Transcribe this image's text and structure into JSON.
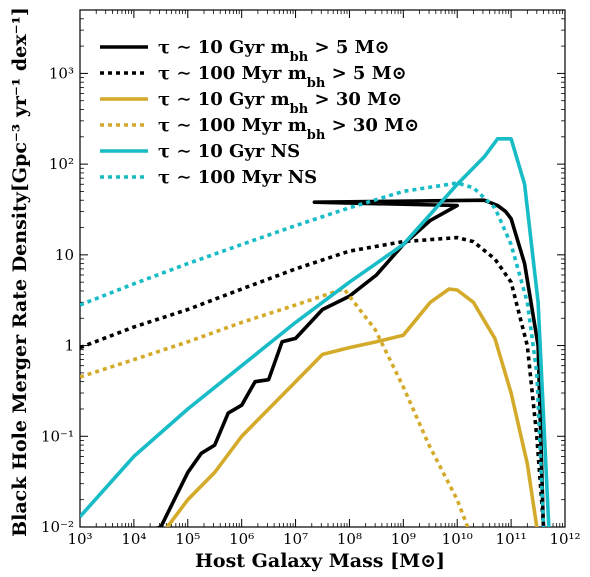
{
  "chart_data": {
    "type": "line",
    "xlabel": "Host Galaxy Mass [M⊙]",
    "ylabel": "Black Hole Merger Rate Density[Gpc⁻³ yr⁻¹ dex⁻¹]",
    "xscale": "log",
    "yscale": "log",
    "xlim": [
      1000,
      1000000000000
    ],
    "ylim": [
      0.01,
      5000
    ],
    "legend_position": "top-left",
    "x_ticks": [
      {
        "value": 1000,
        "label": "10³"
      },
      {
        "value": 10000,
        "label": "10⁴"
      },
      {
        "value": 100000,
        "label": "10⁵"
      },
      {
        "value": 1000000,
        "label": "10⁶"
      },
      {
        "value": 10000000,
        "label": "10⁷"
      },
      {
        "value": 100000000,
        "label": "10⁸"
      },
      {
        "value": 1000000000,
        "label": "10⁹"
      },
      {
        "value": 10000000000,
        "label": "10¹⁰"
      },
      {
        "value": 100000000000,
        "label": "10¹¹"
      },
      {
        "value": 1000000000000,
        "label": "10¹²"
      }
    ],
    "y_ticks": [
      {
        "value": 0.01,
        "label": "10⁻²"
      },
      {
        "value": 0.1,
        "label": "10⁻¹"
      },
      {
        "value": 1,
        "label": "1"
      },
      {
        "value": 10,
        "label": "10"
      },
      {
        "value": 100,
        "label": "10²"
      },
      {
        "value": 1000,
        "label": "10³"
      }
    ],
    "series": [
      {
        "name": "τ ∼ 10 Gyr m_bh > 5 M⊙",
        "color": "#000000",
        "style": "solid",
        "x": [
          10000,
          31623,
          100000,
          177828,
          316228,
          562341,
          1000000,
          1778279,
          3162278,
          5623413,
          10000000,
          31622777,
          100000000,
          316227766,
          1000000000,
          3162277660,
          10000000000,
          22387211,
          31622776602,
          56234132519,
          79432823472,
          100000000000,
          177827941004,
          316227766017,
          398107170553
        ],
        "y": [
          0.008,
          0.01,
          0.04,
          0.065,
          0.08,
          0.18,
          0.22,
          0.4,
          0.42,
          1.1,
          1.2,
          2.5,
          3.5,
          6,
          13,
          24,
          35,
          38,
          40,
          35,
          30,
          25,
          8,
          1,
          0.01
        ],
        "x_note": ""
      },
      {
        "name": "τ ∼ 100 Myr m_bh > 5 M⊙",
        "color": "#000000",
        "style": "dotted",
        "x": [
          1000,
          10000,
          100000,
          1000000,
          10000000,
          100000000,
          1000000000,
          10000000000,
          20000000000,
          50000000000,
          100000000000,
          200000000000,
          300000000000,
          400000000000
        ],
        "y": [
          0.95,
          1.6,
          2.5,
          4.2,
          7,
          11,
          14,
          15.5,
          14,
          9,
          5,
          1,
          0.1,
          0.01
        ]
      },
      {
        "name": "τ ∼ 10 Gyr m_bh > 30 M⊙",
        "color": "#d4aa2a",
        "style": "solid",
        "x": [
          31623,
          100000,
          316228,
          1000000,
          3162278,
          10000000,
          31622777,
          100000000,
          316227766,
          1000000000,
          3162277660,
          7079457844,
          10000000000,
          19952623150,
          50118723363,
          100000000000,
          200000000000,
          316227766017
        ],
        "y": [
          0.008,
          0.02,
          0.04,
          0.1,
          0.2,
          0.4,
          0.8,
          0.95,
          1.1,
          1.3,
          3,
          4.2,
          4.1,
          3,
          1.2,
          0.3,
          0.05,
          0.008
        ]
      },
      {
        "name": "τ ∼ 100 Myr m_bh > 30 M⊙",
        "color": "#d4aa2a",
        "style": "dotted",
        "x": [
          1000,
          10000,
          100000,
          1000000,
          10000000,
          60000000,
          80000000,
          100000000,
          300000000,
          1000000000,
          3000000000,
          10000000000,
          18000000000
        ],
        "y": [
          0.45,
          0.7,
          1.1,
          1.8,
          2.8,
          4,
          4.2,
          3.5,
          1.5,
          0.35,
          0.08,
          0.02,
          0.008
        ]
      },
      {
        "name": "τ ∼ 10 Gyr NS",
        "color": "#17bcc6",
        "style": "solid",
        "x": [
          1000,
          10000,
          100000,
          1000000,
          10000000,
          100000000,
          1000000000,
          10000000000,
          31622776602,
          56234132519,
          100000000000,
          177827941004,
          316227766017,
          501187233627
        ],
        "y": [
          0.013,
          0.06,
          0.2,
          0.6,
          1.8,
          5,
          13,
          60,
          120,
          190,
          190,
          60,
          3,
          0.01
        ]
      },
      {
        "name": "τ ∼ 100 Myr NS",
        "color": "#17bcc6",
        "style": "dotted",
        "x": [
          1000,
          10000,
          100000,
          1000000,
          10000000,
          100000000,
          1000000000,
          10000000000,
          20000000000,
          50000000000,
          100000000000,
          200000000000,
          300000000000,
          400000000000
        ],
        "y": [
          2.8,
          4.8,
          8,
          13,
          21,
          33,
          50,
          62,
          55,
          33,
          13,
          3,
          0.5,
          0.01
        ]
      }
    ]
  }
}
